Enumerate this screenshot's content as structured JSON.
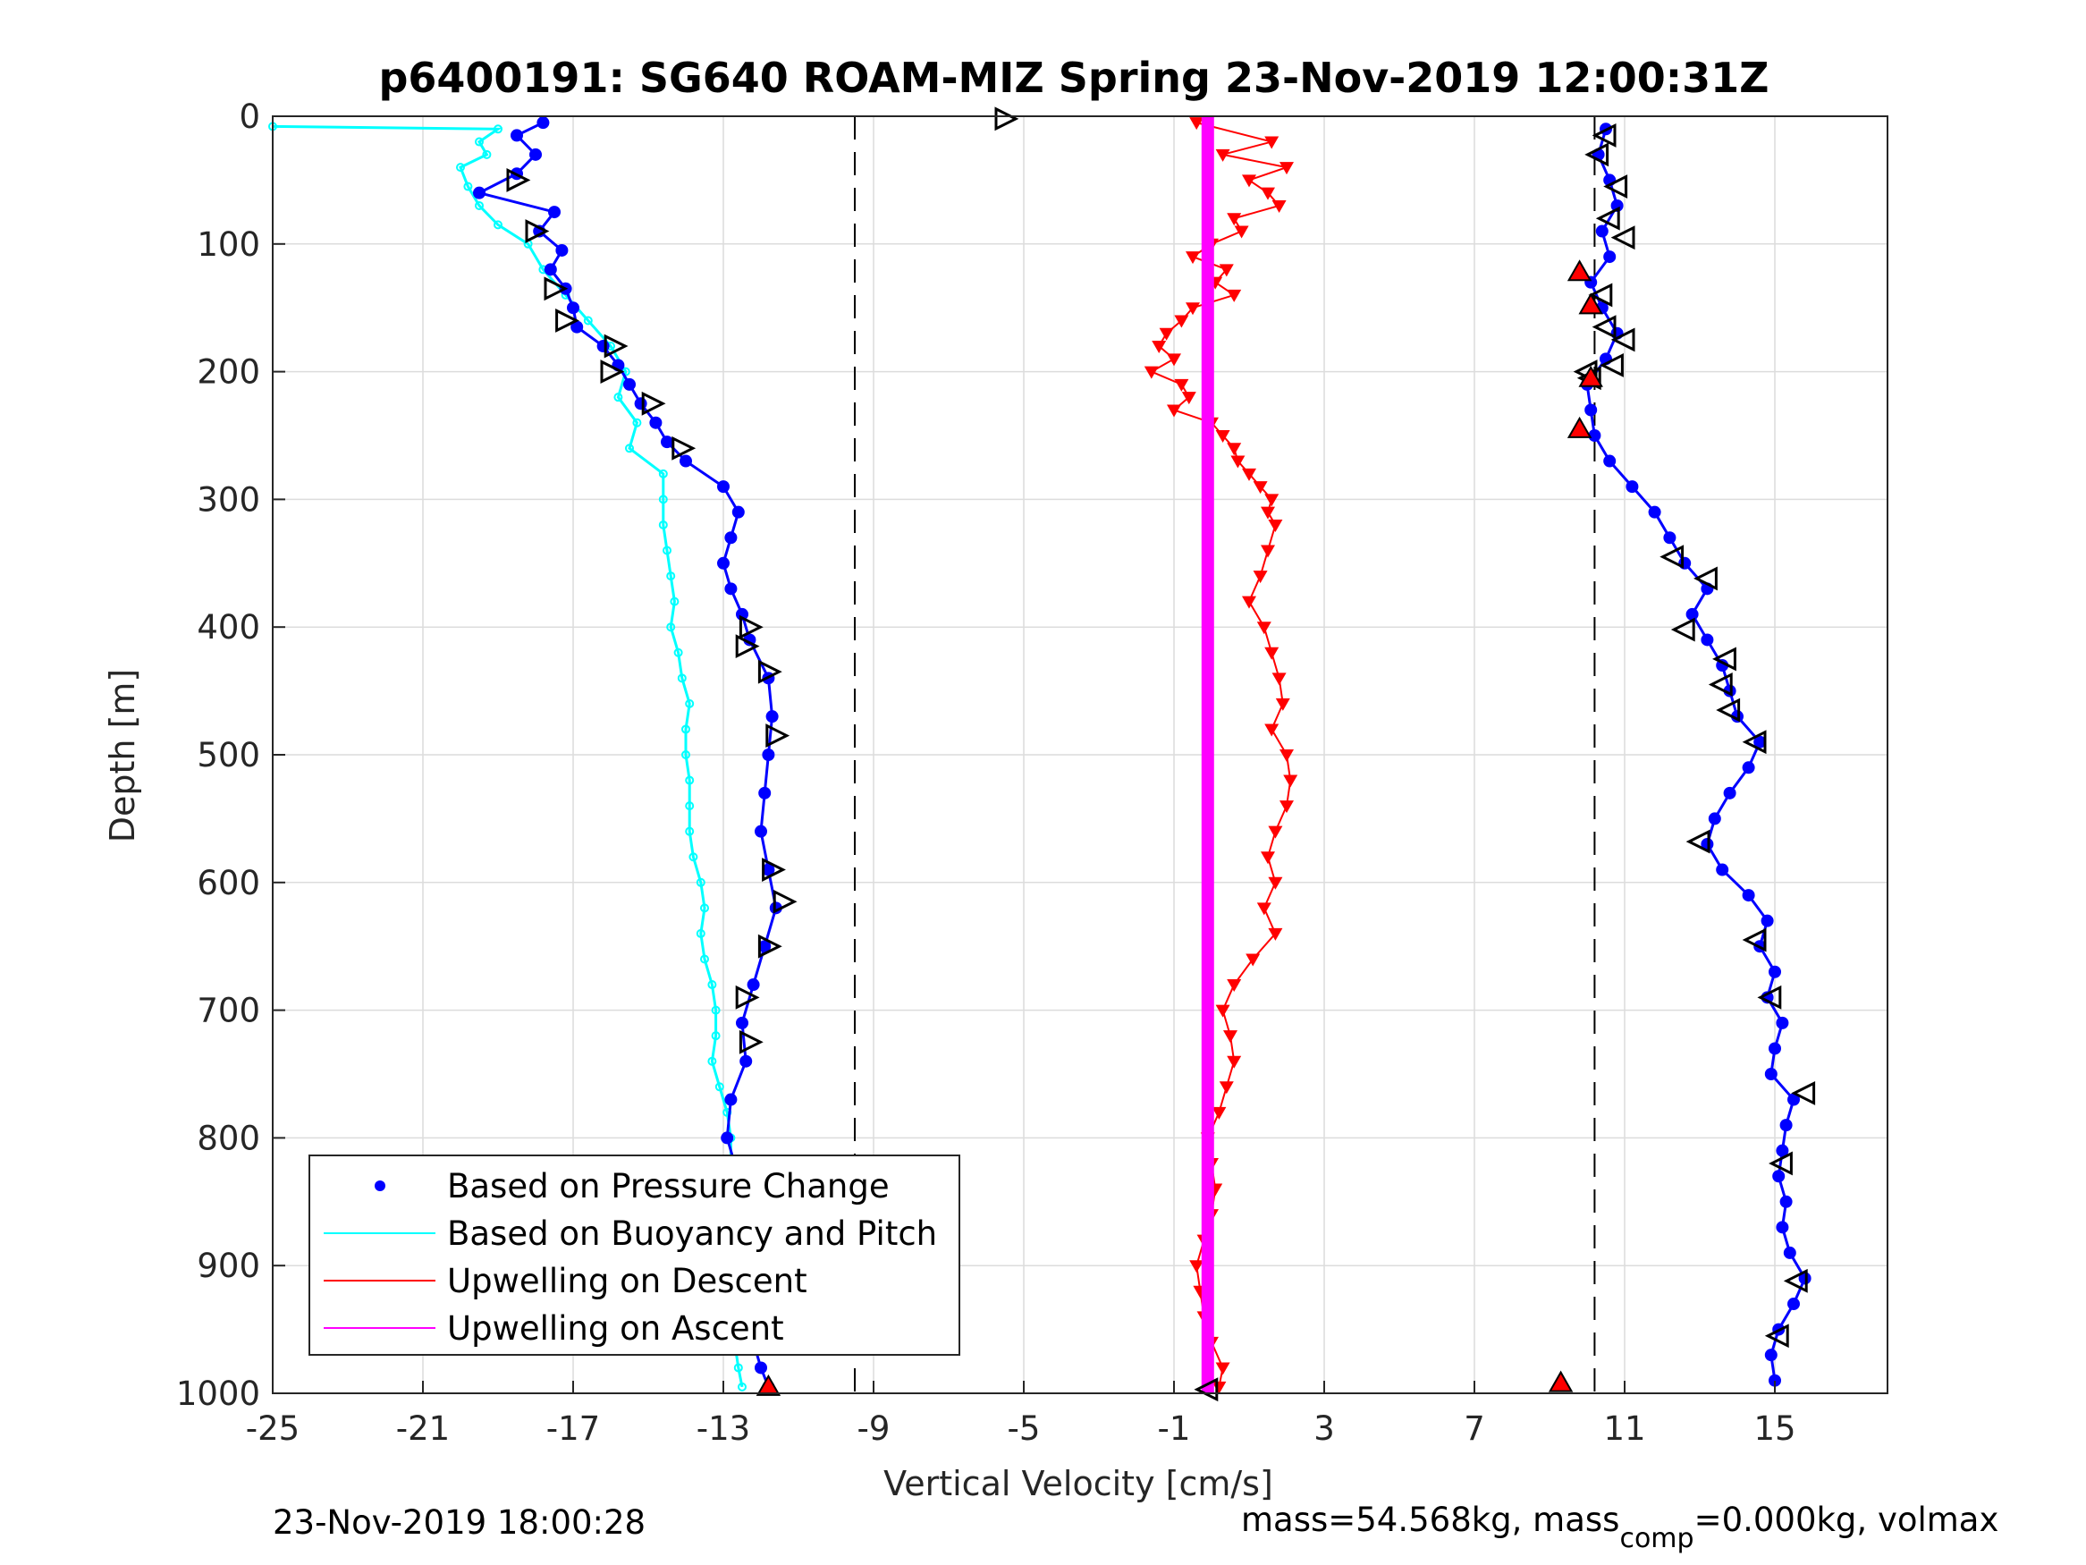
{
  "chart_data": {
    "type": "scatter",
    "title": "p6400191: SG640 ROAM-MIZ Spring 23-Nov-2019 12:00:31Z",
    "xlabel": "Vertical Velocity [cm/s]",
    "ylabel": "Depth [m]",
    "xlim": [
      -25,
      18
    ],
    "ylim": [
      0,
      1000
    ],
    "y_reversed": true,
    "grid": true,
    "xticks": [
      -25,
      -21,
      -17,
      -13,
      -9,
      -5,
      -1,
      3,
      7,
      11,
      15
    ],
    "yticks": [
      0,
      100,
      200,
      300,
      400,
      500,
      600,
      700,
      800,
      900,
      1000
    ],
    "reference_lines": [
      -9.5,
      10.2
    ],
    "legend_position": "bottom-left",
    "series": [
      {
        "name": "Based on Pressure Change",
        "color": "#0000ff",
        "style": "dots",
        "descent": [
          [
            -17.8,
            5
          ],
          [
            -18.5,
            15
          ],
          [
            -18.0,
            30
          ],
          [
            -18.5,
            45
          ],
          [
            -19.5,
            60
          ],
          [
            -17.5,
            75
          ],
          [
            -17.9,
            90
          ],
          [
            -17.3,
            105
          ],
          [
            -17.6,
            120
          ],
          [
            -17.2,
            135
          ],
          [
            -17.0,
            150
          ],
          [
            -16.9,
            165
          ],
          [
            -16.2,
            180
          ],
          [
            -15.8,
            195
          ],
          [
            -15.5,
            210
          ],
          [
            -15.2,
            225
          ],
          [
            -14.8,
            240
          ],
          [
            -14.5,
            255
          ],
          [
            -14.0,
            270
          ],
          [
            -13.0,
            290
          ],
          [
            -12.6,
            310
          ],
          [
            -12.8,
            330
          ],
          [
            -13.0,
            350
          ],
          [
            -12.8,
            370
          ],
          [
            -12.5,
            390
          ],
          [
            -12.3,
            410
          ],
          [
            -11.8,
            440
          ],
          [
            -11.7,
            470
          ],
          [
            -11.8,
            500
          ],
          [
            -11.9,
            530
          ],
          [
            -12.0,
            560
          ],
          [
            -11.8,
            590
          ],
          [
            -11.6,
            620
          ],
          [
            -11.9,
            650
          ],
          [
            -12.2,
            680
          ],
          [
            -12.5,
            710
          ],
          [
            -12.4,
            740
          ],
          [
            -12.8,
            770
          ],
          [
            -12.9,
            800
          ],
          [
            -12.6,
            830
          ],
          [
            -12.8,
            860
          ],
          [
            -12.6,
            890
          ],
          [
            -12.4,
            920
          ],
          [
            -12.3,
            950
          ],
          [
            -12.0,
            980
          ],
          [
            -11.8,
            995
          ]
        ],
        "ascent": [
          [
            10.5,
            10
          ],
          [
            10.3,
            30
          ],
          [
            10.6,
            50
          ],
          [
            10.8,
            70
          ],
          [
            10.4,
            90
          ],
          [
            10.6,
            110
          ],
          [
            10.1,
            130
          ],
          [
            10.4,
            150
          ],
          [
            10.8,
            170
          ],
          [
            10.5,
            190
          ],
          [
            10.0,
            210
          ],
          [
            10.1,
            230
          ],
          [
            10.2,
            250
          ],
          [
            10.6,
            270
          ],
          [
            11.2,
            290
          ],
          [
            11.8,
            310
          ],
          [
            12.2,
            330
          ],
          [
            12.6,
            350
          ],
          [
            13.2,
            370
          ],
          [
            12.8,
            390
          ],
          [
            13.2,
            410
          ],
          [
            13.6,
            430
          ],
          [
            13.8,
            450
          ],
          [
            14.0,
            470
          ],
          [
            14.6,
            490
          ],
          [
            14.3,
            510
          ],
          [
            13.8,
            530
          ],
          [
            13.4,
            550
          ],
          [
            13.2,
            570
          ],
          [
            13.6,
            590
          ],
          [
            14.3,
            610
          ],
          [
            14.8,
            630
          ],
          [
            14.6,
            650
          ],
          [
            15.0,
            670
          ],
          [
            14.8,
            690
          ],
          [
            15.2,
            710
          ],
          [
            15.0,
            730
          ],
          [
            14.9,
            750
          ],
          [
            15.5,
            770
          ],
          [
            15.3,
            790
          ],
          [
            15.2,
            810
          ],
          [
            15.1,
            830
          ],
          [
            15.3,
            850
          ],
          [
            15.2,
            870
          ],
          [
            15.4,
            890
          ],
          [
            15.8,
            910
          ],
          [
            15.5,
            930
          ],
          [
            15.1,
            950
          ],
          [
            14.9,
            970
          ],
          [
            15.0,
            990
          ]
        ]
      },
      {
        "name": "Based on Buoyancy and Pitch",
        "color": "#00ffff",
        "style": "line",
        "points": [
          [
            -25.0,
            8
          ],
          [
            -19.0,
            10
          ],
          [
            -19.5,
            20
          ],
          [
            -19.3,
            30
          ],
          [
            -20.0,
            40
          ],
          [
            -19.8,
            55
          ],
          [
            -19.5,
            70
          ],
          [
            -19.0,
            85
          ],
          [
            -18.2,
            100
          ],
          [
            -17.8,
            120
          ],
          [
            -17.2,
            140
          ],
          [
            -16.6,
            160
          ],
          [
            -16.0,
            180
          ],
          [
            -15.6,
            200
          ],
          [
            -15.8,
            220
          ],
          [
            -15.3,
            240
          ],
          [
            -15.5,
            260
          ],
          [
            -14.6,
            280
          ],
          [
            -14.6,
            300
          ],
          [
            -14.6,
            320
          ],
          [
            -14.5,
            340
          ],
          [
            -14.4,
            360
          ],
          [
            -14.3,
            380
          ],
          [
            -14.4,
            400
          ],
          [
            -14.2,
            420
          ],
          [
            -14.1,
            440
          ],
          [
            -13.9,
            460
          ],
          [
            -14.0,
            480
          ],
          [
            -14.0,
            500
          ],
          [
            -13.9,
            520
          ],
          [
            -13.9,
            540
          ],
          [
            -13.9,
            560
          ],
          [
            -13.8,
            580
          ],
          [
            -13.6,
            600
          ],
          [
            -13.5,
            620
          ],
          [
            -13.6,
            640
          ],
          [
            -13.5,
            660
          ],
          [
            -13.3,
            680
          ],
          [
            -13.2,
            700
          ],
          [
            -13.2,
            720
          ],
          [
            -13.3,
            740
          ],
          [
            -13.1,
            760
          ],
          [
            -12.9,
            780
          ],
          [
            -12.8,
            800
          ],
          [
            -12.8,
            820
          ],
          [
            -12.8,
            840
          ],
          [
            -12.9,
            860
          ],
          [
            -12.9,
            880
          ],
          [
            -12.7,
            900
          ],
          [
            -12.6,
            920
          ],
          [
            -12.5,
            940
          ],
          [
            -12.7,
            960
          ],
          [
            -12.6,
            980
          ],
          [
            -12.5,
            995
          ]
        ]
      },
      {
        "name": "Upwelling on Descent",
        "color": "#ff0000",
        "style": "line-triangle-down",
        "points": [
          [
            -0.4,
            5
          ],
          [
            1.6,
            20
          ],
          [
            0.3,
            30
          ],
          [
            2.0,
            40
          ],
          [
            1.0,
            50
          ],
          [
            1.5,
            60
          ],
          [
            1.8,
            70
          ],
          [
            0.6,
            80
          ],
          [
            0.8,
            90
          ],
          [
            0.0,
            100
          ],
          [
            -0.5,
            110
          ],
          [
            0.4,
            120
          ],
          [
            0.1,
            130
          ],
          [
            0.6,
            140
          ],
          [
            -0.5,
            150
          ],
          [
            -0.8,
            160
          ],
          [
            -1.2,
            170
          ],
          [
            -1.4,
            180
          ],
          [
            -1.0,
            190
          ],
          [
            -1.6,
            200
          ],
          [
            -0.8,
            210
          ],
          [
            -0.6,
            220
          ],
          [
            -1.0,
            230
          ],
          [
            0.0,
            240
          ],
          [
            0.3,
            250
          ],
          [
            0.6,
            260
          ],
          [
            0.7,
            270
          ],
          [
            1.0,
            280
          ],
          [
            1.3,
            290
          ],
          [
            1.6,
            300
          ],
          [
            1.5,
            310
          ],
          [
            1.7,
            320
          ],
          [
            1.5,
            340
          ],
          [
            1.3,
            360
          ],
          [
            1.0,
            380
          ],
          [
            1.4,
            400
          ],
          [
            1.6,
            420
          ],
          [
            1.8,
            440
          ],
          [
            1.9,
            460
          ],
          [
            1.6,
            480
          ],
          [
            2.0,
            500
          ],
          [
            2.1,
            520
          ],
          [
            2.0,
            540
          ],
          [
            1.7,
            560
          ],
          [
            1.5,
            580
          ],
          [
            1.7,
            600
          ],
          [
            1.4,
            620
          ],
          [
            1.7,
            640
          ],
          [
            1.1,
            660
          ],
          [
            0.6,
            680
          ],
          [
            0.3,
            700
          ],
          [
            0.5,
            720
          ],
          [
            0.6,
            740
          ],
          [
            0.4,
            760
          ],
          [
            0.2,
            780
          ],
          [
            -0.1,
            800
          ],
          [
            0.0,
            820
          ],
          [
            0.1,
            840
          ],
          [
            0.0,
            860
          ],
          [
            -0.2,
            880
          ],
          [
            -0.4,
            900
          ],
          [
            -0.3,
            920
          ],
          [
            -0.2,
            940
          ],
          [
            0.0,
            960
          ],
          [
            0.3,
            980
          ],
          [
            0.2,
            995
          ]
        ]
      },
      {
        "name": "Upwelling on Ascent",
        "color": "#ff00ff",
        "style": "thick-line",
        "points": [
          [
            -0.1,
            0
          ],
          [
            -0.1,
            1000
          ]
        ]
      }
    ],
    "descent_markers": [
      [
        -18.5,
        50
      ],
      [
        -18.0,
        90
      ],
      [
        -17.5,
        135
      ],
      [
        -17.2,
        160
      ],
      [
        -15.9,
        180
      ],
      [
        -16.0,
        200
      ],
      [
        -14.9,
        225
      ],
      [
        -14.1,
        260
      ],
      [
        -12.3,
        400
      ],
      [
        -12.4,
        415
      ],
      [
        -11.8,
        435
      ],
      [
        -11.6,
        485
      ],
      [
        -11.7,
        590
      ],
      [
        -11.4,
        615
      ],
      [
        -11.8,
        650
      ],
      [
        -12.4,
        690
      ],
      [
        -12.3,
        725
      ],
      [
        -12.5,
        830
      ],
      [
        -12.6,
        870
      ],
      [
        -5.5,
        2
      ]
    ],
    "ascent_markers": [
      [
        10.5,
        15
      ],
      [
        10.3,
        30
      ],
      [
        10.8,
        55
      ],
      [
        10.6,
        80
      ],
      [
        11.0,
        95
      ],
      [
        10.4,
        140
      ],
      [
        10.5,
        165
      ],
      [
        11.0,
        175
      ],
      [
        10.7,
        195
      ],
      [
        10.0,
        200
      ],
      [
        10.1,
        205
      ],
      [
        12.3,
        345
      ],
      [
        13.2,
        362
      ],
      [
        12.6,
        402
      ],
      [
        13.7,
        425
      ],
      [
        13.6,
        445
      ],
      [
        13.8,
        465
      ],
      [
        14.5,
        490
      ],
      [
        13.0,
        568
      ],
      [
        14.5,
        645
      ],
      [
        14.9,
        690
      ],
      [
        15.8,
        765
      ],
      [
        15.2,
        820
      ],
      [
        15.6,
        912
      ],
      [
        15.1,
        955
      ],
      [
        -0.1,
        997
      ]
    ],
    "red_markers": [
      [
        9.8,
        122
      ],
      [
        10.1,
        148
      ],
      [
        10.1,
        205
      ],
      [
        9.8,
        245
      ],
      [
        -11.8,
        995
      ],
      [
        9.3,
        992
      ]
    ],
    "footer_left": "23-Nov-2019 18:00:28",
    "footer_right": "mass=54.568kg, mass",
    "footer_right_sub": "comp",
    "footer_right_tail": "=0.000kg, volmax"
  }
}
